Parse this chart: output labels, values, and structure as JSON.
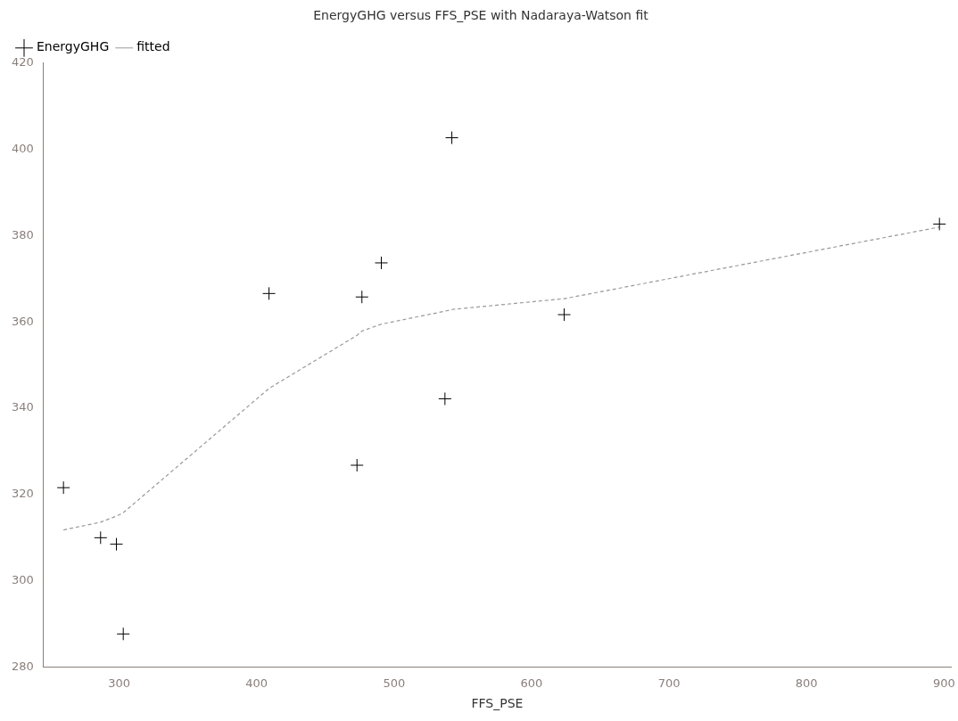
{
  "chart_data": {
    "type": "scatter",
    "title": "EnergyGHG versus FFS_PSE with Nadaraya-Watson fit",
    "xlabel": "FFS_PSE",
    "xlim": [
      245,
      905
    ],
    "xticks": [
      300,
      400,
      500,
      600,
      700,
      800,
      900
    ],
    "ylim": [
      280,
      420
    ],
    "yticks": [
      280,
      300,
      320,
      340,
      360,
      380,
      400,
      420
    ],
    "grid": false,
    "legend": "top left",
    "series": [
      {
        "name": "EnergyGHG",
        "marker": "cross",
        "color": "#000000",
        "x": [
          259.5,
          286.5,
          298,
          303,
          409,
          473,
          476.6,
          490.7,
          537,
          542,
          623.7,
          896.7
        ],
        "values": [
          321.6,
          310,
          308.5,
          287.7,
          366.6,
          326.8,
          365.8,
          373.7,
          342.2,
          402.7,
          361.7,
          382.7
        ]
      },
      {
        "name": "fitted",
        "type": "line",
        "marker": "none",
        "line_style": "dashed",
        "color": "#999999",
        "x": [
          259.5,
          286.5,
          298,
          303,
          409,
          473,
          476.6,
          490.7,
          537,
          542,
          623.7,
          896.7
        ],
        "values": [
          311.8,
          313.6,
          315,
          315.8,
          344.6,
          356.9,
          357.9,
          359.5,
          362.5,
          362.9,
          365.4,
          382
        ]
      }
    ]
  }
}
